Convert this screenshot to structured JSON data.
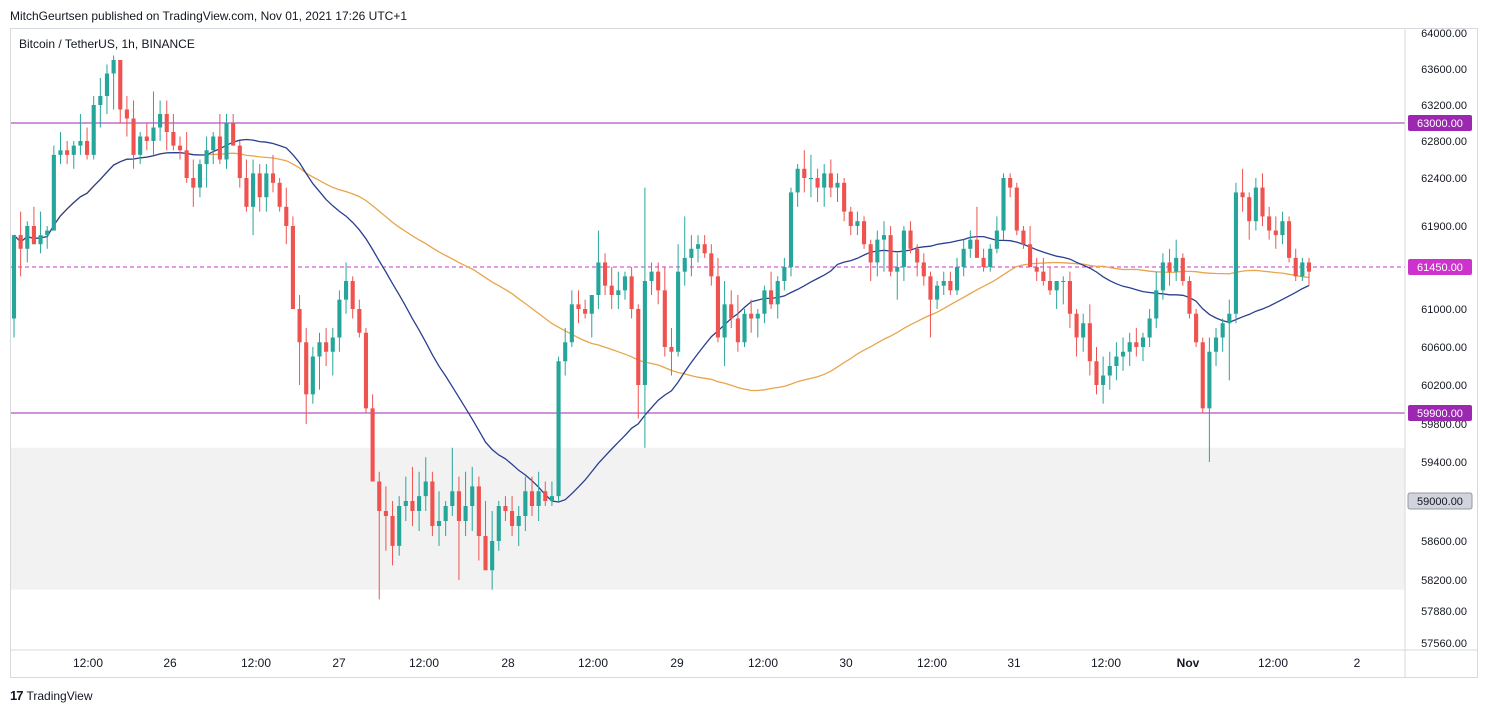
{
  "header": {
    "published_by": "MitchGeurtsen published on TradingView.com, Nov 01, 2021 17:26 UTC+1"
  },
  "chart_header": {
    "symbol_info": "Bitcoin / TetherUS, 1h, BINANCE"
  },
  "footer": {
    "brand_mark": "17",
    "brand": "TradingView"
  },
  "colors": {
    "up": "#26a69a",
    "down": "#ef5350",
    "ma_slow": "#2a3f8f",
    "ma_fast": "#e8a54b",
    "resistance": "#9c27b0",
    "zone": "#f2f2f2",
    "current_price": "#cc33cc"
  },
  "chart_data": {
    "type": "candlestick",
    "title": "Bitcoin / TetherUS, 1h, BINANCE",
    "x_labels": [
      "12:00",
      "26",
      "12:00",
      "27",
      "12:00",
      "28",
      "12:00",
      "29",
      "12:00",
      "30",
      "12:00",
      "31",
      "12:00",
      "Nov",
      "12:00",
      "2"
    ],
    "bold_x_labels": [
      "Nov"
    ],
    "y_ticks": [
      64000,
      63600,
      63200,
      62800,
      62400,
      61900,
      61000,
      60600,
      60200,
      59800,
      59400,
      58600,
      58200,
      57880,
      57560
    ],
    "y_range": [
      57400,
      64100
    ],
    "price_scale_labels": [
      {
        "value": 63000,
        "label": "63000.00",
        "style": "resistance"
      },
      {
        "value": 61450,
        "label": "61450.00",
        "style": "current"
      },
      {
        "value": 59900,
        "label": "59900.00",
        "style": "resistance"
      },
      {
        "value": 59000,
        "label": "59000.00",
        "style": "zone"
      }
    ],
    "horizontal_lines": [
      {
        "value": 63000,
        "style": "solid"
      },
      {
        "value": 59900,
        "style": "solid"
      },
      {
        "value": 61450,
        "style": "dashed"
      }
    ],
    "zone": {
      "from": 58100,
      "to": 59550
    },
    "candles_approx": [
      [
        60900,
        61800,
        60700,
        61800
      ],
      [
        61800,
        62050,
        61350,
        61650
      ],
      [
        61650,
        61950,
        61500,
        61900
      ],
      [
        61900,
        62100,
        61700,
        61700
      ],
      [
        61700,
        62050,
        61600,
        61800
      ],
      [
        61800,
        61900,
        61650,
        61850
      ],
      [
        61850,
        62750,
        61850,
        62650
      ],
      [
        62650,
        62900,
        62550,
        62700
      ],
      [
        62700,
        62800,
        62550,
        62650
      ],
      [
        62650,
        62800,
        62500,
        62750
      ],
      [
        62750,
        63100,
        62650,
        62800
      ],
      [
        62800,
        62950,
        62600,
        62650
      ],
      [
        62650,
        63300,
        62600,
        63200
      ],
      [
        63200,
        63500,
        62950,
        63300
      ],
      [
        63300,
        63650,
        63100,
        63550
      ],
      [
        63550,
        63750,
        63150,
        63700
      ],
      [
        63700,
        63700,
        63000,
        63150
      ],
      [
        63150,
        63300,
        62850,
        63050
      ],
      [
        63050,
        63250,
        62500,
        62650
      ],
      [
        62650,
        62900,
        62550,
        62850
      ],
      [
        62850,
        63000,
        62700,
        62800
      ],
      [
        62800,
        63350,
        62650,
        62950
      ],
      [
        62950,
        63250,
        62800,
        63100
      ],
      [
        63100,
        63250,
        62700,
        62900
      ],
      [
        62900,
        63100,
        62700,
        62750
      ],
      [
        62750,
        62850,
        62600,
        62700
      ],
      [
        62700,
        62900,
        62350,
        62400
      ],
      [
        62400,
        62600,
        62100,
        62300
      ],
      [
        62300,
        62600,
        62200,
        62550
      ],
      [
        62550,
        62850,
        62300,
        62700
      ],
      [
        62700,
        62900,
        62550,
        62850
      ],
      [
        62850,
        63100,
        62550,
        62600
      ],
      [
        62600,
        63100,
        62500,
        63000
      ],
      [
        63000,
        63100,
        62750,
        62750
      ],
      [
        62750,
        62800,
        62300,
        62400
      ],
      [
        62400,
        62600,
        62050,
        62100
      ],
      [
        62100,
        62600,
        61800,
        62450
      ],
      [
        62450,
        62550,
        62050,
        62200
      ],
      [
        62200,
        62550,
        62050,
        62450
      ],
      [
        62450,
        62650,
        62250,
        62350
      ],
      [
        62350,
        62400,
        62050,
        62100
      ],
      [
        62100,
        62300,
        61700,
        61900
      ],
      [
        61900,
        62000,
        61000,
        61000
      ],
      [
        61000,
        61150,
        60200,
        60650
      ],
      [
        60650,
        60800,
        59800,
        60100
      ],
      [
        60100,
        60600,
        60000,
        60500
      ],
      [
        60500,
        60750,
        60150,
        60650
      ],
      [
        60650,
        60800,
        60400,
        60550
      ],
      [
        60550,
        60800,
        60300,
        60700
      ],
      [
        60700,
        61200,
        60550,
        61100
      ],
      [
        61100,
        61500,
        60950,
        61300
      ],
      [
        61300,
        61350,
        60900,
        61000
      ],
      [
        61000,
        61100,
        60700,
        60750
      ],
      [
        60750,
        60800,
        59900,
        59950
      ],
      [
        59950,
        60100,
        59200,
        59200
      ],
      [
        59200,
        59300,
        58000,
        58900
      ],
      [
        58900,
        59150,
        58500,
        58850
      ],
      [
        58850,
        59000,
        58350,
        58550
      ],
      [
        58550,
        59050,
        58450,
        58950
      ],
      [
        58950,
        59250,
        58800,
        59000
      ],
      [
        59000,
        59350,
        58750,
        58900
      ],
      [
        58900,
        59300,
        58700,
        59050
      ],
      [
        59050,
        59450,
        58900,
        59200
      ],
      [
        59200,
        59300,
        58650,
        58750
      ],
      [
        58750,
        59100,
        58550,
        58800
      ],
      [
        58800,
        59000,
        58650,
        58950
      ],
      [
        58950,
        59550,
        58850,
        59100
      ],
      [
        59100,
        59250,
        58200,
        58800
      ],
      [
        58800,
        59300,
        58650,
        58950
      ],
      [
        58950,
        59350,
        58700,
        59150
      ],
      [
        59150,
        59250,
        58400,
        58650
      ],
      [
        58650,
        59000,
        58300,
        58300
      ],
      [
        58300,
        58900,
        58100,
        58600
      ],
      [
        58600,
        59000,
        58500,
        58950
      ],
      [
        58950,
        59050,
        58800,
        58900
      ],
      [
        58900,
        59050,
        58650,
        58750
      ],
      [
        58750,
        58950,
        58550,
        58850
      ],
      [
        58850,
        59250,
        58700,
        59100
      ],
      [
        59100,
        59250,
        58850,
        58950
      ],
      [
        58950,
        59300,
        58800,
        59100
      ],
      [
        59100,
        59200,
        58950,
        59000
      ],
      [
        59000,
        59200,
        58950,
        59050
      ],
      [
        59050,
        60500,
        59000,
        60450
      ],
      [
        60450,
        60800,
        60300,
        60650
      ],
      [
        60650,
        61200,
        60600,
        61050
      ],
      [
        61050,
        61200,
        60850,
        61000
      ],
      [
        61000,
        61100,
        60900,
        60950
      ],
      [
        60950,
        61150,
        60700,
        61150
      ],
      [
        61150,
        61850,
        61000,
        61500
      ],
      [
        61500,
        61600,
        61150,
        61250
      ],
      [
        61250,
        61450,
        61000,
        61150
      ],
      [
        61150,
        61400,
        61000,
        61200
      ],
      [
        61200,
        61400,
        61100,
        61350
      ],
      [
        61350,
        61450,
        60900,
        61000
      ],
      [
        61000,
        61050,
        59850,
        60200
      ],
      [
        60200,
        62300,
        59550,
        61300
      ],
      [
        61300,
        61500,
        61150,
        61400
      ],
      [
        61400,
        61500,
        61050,
        61200
      ],
      [
        61200,
        61450,
        60500,
        60600
      ],
      [
        60600,
        60800,
        60300,
        60550
      ],
      [
        60550,
        61700,
        60500,
        61400
      ],
      [
        61400,
        62000,
        61250,
        61550
      ],
      [
        61550,
        61800,
        61350,
        61650
      ],
      [
        61650,
        61800,
        61500,
        61700
      ],
      [
        61700,
        61800,
        61550,
        61600
      ],
      [
        61600,
        61700,
        61250,
        61350
      ],
      [
        61350,
        61550,
        60650,
        60700
      ],
      [
        60700,
        61300,
        60400,
        61050
      ],
      [
        61050,
        61200,
        60800,
        60900
      ],
      [
        60900,
        61150,
        60550,
        60650
      ],
      [
        60650,
        61000,
        60600,
        60950
      ],
      [
        60950,
        61100,
        60750,
        60900
      ],
      [
        60900,
        61000,
        60700,
        60950
      ],
      [
        60950,
        61250,
        60850,
        61200
      ],
      [
        61200,
        61400,
        61000,
        61050
      ],
      [
        61050,
        61350,
        60900,
        61300
      ],
      [
        61300,
        61550,
        61200,
        61450
      ],
      [
        61450,
        62300,
        61350,
        62250
      ],
      [
        62250,
        62550,
        62100,
        62500
      ],
      [
        62500,
        62700,
        62250,
        62400
      ],
      [
        62400,
        62650,
        62200,
        62400
      ],
      [
        62400,
        62500,
        62150,
        62300
      ],
      [
        62300,
        62550,
        62100,
        62450
      ],
      [
        62450,
        62600,
        62200,
        62300
      ],
      [
        62300,
        62450,
        62150,
        62350
      ],
      [
        62350,
        62400,
        61950,
        62050
      ],
      [
        62050,
        62100,
        61800,
        61900
      ],
      [
        61900,
        62050,
        61800,
        61950
      ],
      [
        61950,
        62000,
        61650,
        61700
      ],
      [
        61700,
        61750,
        61300,
        61500
      ],
      [
        61500,
        61850,
        61350,
        61750
      ],
      [
        61750,
        61950,
        61400,
        61800
      ],
      [
        61800,
        61900,
        61350,
        61400
      ],
      [
        61400,
        61600,
        61100,
        61450
      ],
      [
        61450,
        61900,
        61300,
        61850
      ],
      [
        61850,
        61950,
        61600,
        61650
      ],
      [
        61650,
        61700,
        61350,
        61500
      ],
      [
        61500,
        61600,
        61250,
        61350
      ],
      [
        61350,
        61400,
        60700,
        61100
      ],
      [
        61100,
        61300,
        61000,
        61250
      ],
      [
        61250,
        61400,
        61150,
        61300
      ],
      [
        61300,
        61400,
        61150,
        61200
      ],
      [
        61200,
        61550,
        61150,
        61450
      ],
      [
        61450,
        61750,
        61350,
        61650
      ],
      [
        61650,
        61850,
        61550,
        61750
      ],
      [
        61750,
        62100,
        61650,
        61550
      ],
      [
        61550,
        61650,
        61400,
        61450
      ],
      [
        61450,
        61700,
        61400,
        61650
      ],
      [
        61650,
        62000,
        61600,
        61850
      ],
      [
        61850,
        62450,
        61750,
        62400
      ],
      [
        62400,
        62450,
        62200,
        62300
      ],
      [
        62300,
        62350,
        61800,
        61850
      ],
      [
        61850,
        61900,
        61650,
        61700
      ],
      [
        61700,
        61900,
        61450,
        61450
      ],
      [
        61450,
        61550,
        61300,
        61400
      ],
      [
        61400,
        61550,
        61250,
        61300
      ],
      [
        61300,
        61450,
        61150,
        61200
      ],
      [
        61200,
        61300,
        61000,
        61300
      ],
      [
        61300,
        61350,
        61050,
        61300
      ],
      [
        61300,
        61400,
        60800,
        60950
      ],
      [
        60950,
        61000,
        60500,
        60700
      ],
      [
        60700,
        60950,
        60550,
        60850
      ],
      [
        60850,
        61050,
        60300,
        60450
      ],
      [
        60450,
        60600,
        60100,
        60200
      ],
      [
        60200,
        60500,
        60000,
        60300
      ],
      [
        60300,
        60550,
        60150,
        60400
      ],
      [
        60400,
        60650,
        60250,
        60500
      ],
      [
        60500,
        60700,
        60350,
        60550
      ],
      [
        60550,
        60750,
        60400,
        60650
      ],
      [
        60650,
        60800,
        60500,
        60600
      ],
      [
        60600,
        60750,
        60450,
        60700
      ],
      [
        60700,
        61000,
        60600,
        60900
      ],
      [
        60900,
        61400,
        60800,
        61200
      ],
      [
        61200,
        61600,
        61100,
        61500
      ],
      [
        61500,
        61650,
        61250,
        61400
      ],
      [
        61400,
        61750,
        61300,
        61550
      ],
      [
        61550,
        61600,
        61250,
        61300
      ],
      [
        61300,
        61350,
        60900,
        60950
      ],
      [
        60950,
        61000,
        60600,
        60650
      ],
      [
        60650,
        60700,
        59900,
        59950
      ],
      [
        59950,
        60700,
        59400,
        60550
      ],
      [
        60550,
        60800,
        60400,
        60700
      ],
      [
        60700,
        60900,
        60550,
        60850
      ],
      [
        60850,
        61100,
        60250,
        60950
      ],
      [
        60950,
        62350,
        60850,
        62250
      ],
      [
        62250,
        62500,
        62050,
        62200
      ],
      [
        62200,
        62250,
        61750,
        61950
      ],
      [
        61950,
        62400,
        61850,
        62300
      ],
      [
        62300,
        62450,
        61900,
        62000
      ],
      [
        62000,
        62100,
        61750,
        61850
      ],
      [
        61850,
        62000,
        61650,
        61800
      ],
      [
        61800,
        62050,
        61700,
        61950
      ],
      [
        61950,
        62000,
        61500,
        61550
      ],
      [
        61550,
        61650,
        61300,
        61350
      ],
      [
        61350,
        61550,
        61300,
        61500
      ],
      [
        61500,
        61550,
        61250,
        61400
      ]
    ]
  }
}
